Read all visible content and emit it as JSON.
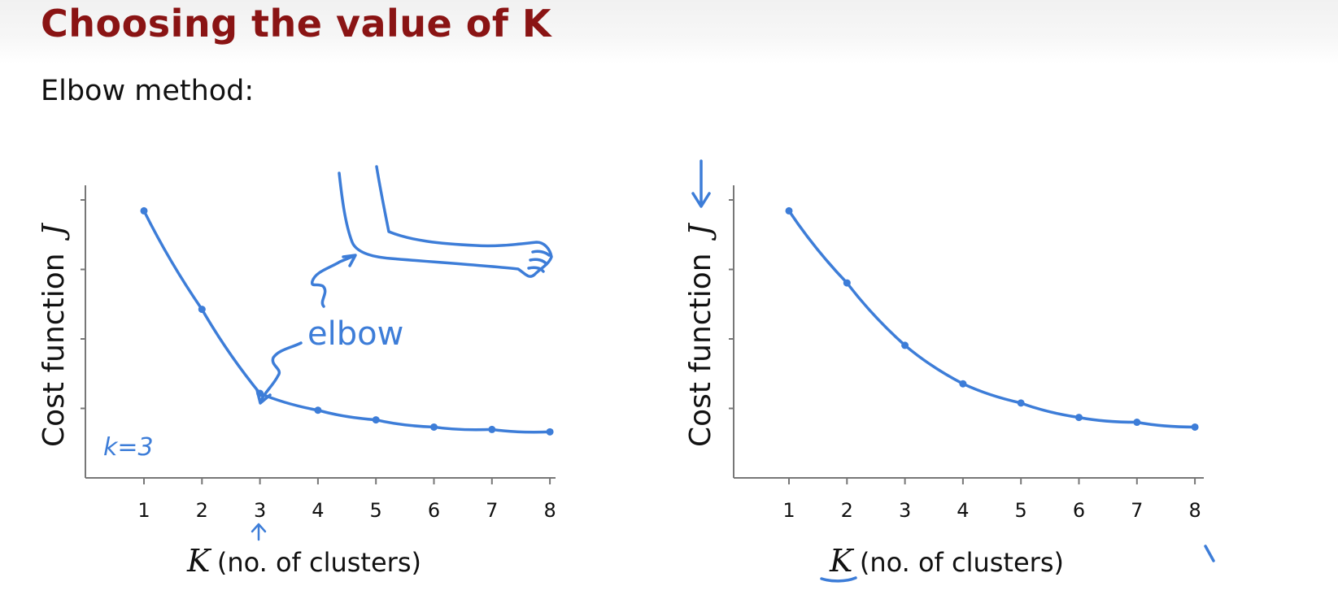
{
  "slide": {
    "title": "Choosing the value of K",
    "subtitle": "Elbow method:"
  },
  "colors": {
    "title": "#8a1414",
    "ink": "#3d7dd8",
    "axis": "#777777"
  },
  "chart_data": [
    {
      "type": "line",
      "title": "",
      "ylabel": "Cost function",
      "ylabel_var": "J",
      "xlabel_var": "K",
      "xlabel": "(no. of clusters)",
      "x": [
        1,
        2,
        3,
        4,
        5,
        6,
        7,
        8
      ],
      "values": [
        1.0,
        0.59,
        0.24,
        0.17,
        0.13,
        0.1,
        0.09,
        0.08
      ],
      "ylim": [
        0,
        1.05
      ],
      "grid": false,
      "annotations": {
        "elbow_label": "elbow",
        "k_label": "k=3"
      }
    },
    {
      "type": "line",
      "title": "",
      "ylabel": "Cost function",
      "ylabel_var": "J",
      "xlabel_var": "K",
      "xlabel": "(no. of clusters)",
      "x": [
        1,
        2,
        3,
        4,
        5,
        6,
        7,
        8
      ],
      "values": [
        1.0,
        0.7,
        0.44,
        0.28,
        0.2,
        0.14,
        0.12,
        0.1
      ],
      "ylim": [
        0,
        1.05
      ],
      "grid": false
    }
  ]
}
